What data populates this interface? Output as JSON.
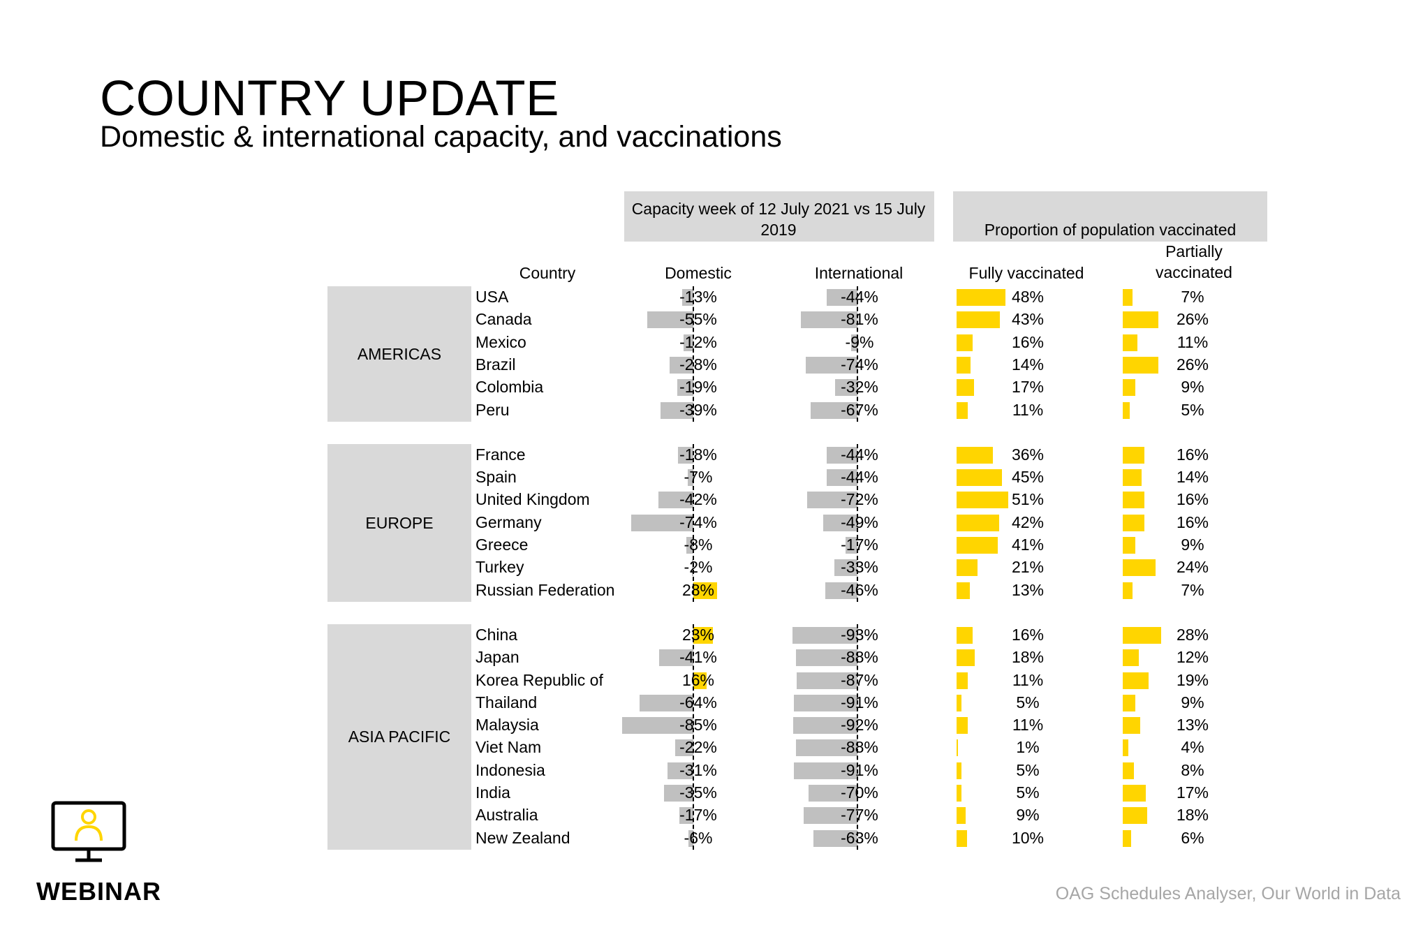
{
  "page": {
    "title": "COUNTRY UPDATE",
    "subtitle": "Domestic & international capacity, and vaccinations",
    "source": "OAG Schedules Analyser, Our World in Data",
    "webinar_label": "WEBINAR"
  },
  "headers": {
    "capacity_group": "Capacity week of 12 July 2021 vs 15 July 2019",
    "vaccination_group": "Proportion of population vaccinated",
    "country": "Country",
    "domestic": "Domestic",
    "international": "International",
    "fully": "Fully vaccinated",
    "partially": "Partially vaccinated"
  },
  "colors": {
    "negative_bar": "#c0c0c0",
    "positive_bar": "#ffd500",
    "header_fill": "#d9d9d9"
  },
  "chart_data": {
    "type": "table",
    "units": "%",
    "regions": [
      {
        "name": "AMERICAS",
        "rows": [
          {
            "country": "USA",
            "domestic": -13,
            "international": -44,
            "fully": 48,
            "partially": 7
          },
          {
            "country": "Canada",
            "domestic": -55,
            "international": -81,
            "fully": 43,
            "partially": 26
          },
          {
            "country": "Mexico",
            "domestic": -12,
            "international": -9,
            "fully": 16,
            "partially": 11
          },
          {
            "country": "Brazil",
            "domestic": -28,
            "international": -74,
            "fully": 14,
            "partially": 26
          },
          {
            "country": "Colombia",
            "domestic": -19,
            "international": -32,
            "fully": 17,
            "partially": 9
          },
          {
            "country": "Peru",
            "domestic": -39,
            "international": -67,
            "fully": 11,
            "partially": 5
          }
        ]
      },
      {
        "name": "EUROPE",
        "rows": [
          {
            "country": "France",
            "domestic": -18,
            "international": -44,
            "fully": 36,
            "partially": 16
          },
          {
            "country": "Spain",
            "domestic": -7,
            "international": -44,
            "fully": 45,
            "partially": 14
          },
          {
            "country": "United Kingdom",
            "domestic": -42,
            "international": -72,
            "fully": 51,
            "partially": 16
          },
          {
            "country": "Germany",
            "domestic": -74,
            "international": -49,
            "fully": 42,
            "partially": 16
          },
          {
            "country": "Greece",
            "domestic": -8,
            "international": -17,
            "fully": 41,
            "partially": 9
          },
          {
            "country": "Turkey",
            "domestic": -2,
            "international": -33,
            "fully": 21,
            "partially": 24
          },
          {
            "country": "Russian Federation",
            "domestic": 28,
            "international": -46,
            "fully": 13,
            "partially": 7
          }
        ]
      },
      {
        "name": "ASIA PACIFIC",
        "rows": [
          {
            "country": "China",
            "domestic": 23,
            "international": -93,
            "fully": 16,
            "partially": 28
          },
          {
            "country": "Japan",
            "domestic": -41,
            "international": -88,
            "fully": 18,
            "partially": 12
          },
          {
            "country": "Korea Republic of",
            "domestic": 16,
            "international": -87,
            "fully": 11,
            "partially": 19
          },
          {
            "country": "Thailand",
            "domestic": -64,
            "international": -91,
            "fully": 5,
            "partially": 9
          },
          {
            "country": "Malaysia",
            "domestic": -85,
            "international": -92,
            "fully": 11,
            "partially": 13
          },
          {
            "country": "Viet Nam",
            "domestic": -22,
            "international": -88,
            "fully": 1,
            "partially": 4
          },
          {
            "country": "Indonesia",
            "domestic": -31,
            "international": -91,
            "fully": 5,
            "partially": 8
          },
          {
            "country": "India",
            "domestic": -35,
            "international": -70,
            "fully": 5,
            "partially": 17
          },
          {
            "country": "Australia",
            "domestic": -17,
            "international": -77,
            "fully": 9,
            "partially": 18
          },
          {
            "country": "New Zealand",
            "domestic": -6,
            "international": -63,
            "fully": 10,
            "partially": 6
          }
        ]
      }
    ]
  }
}
